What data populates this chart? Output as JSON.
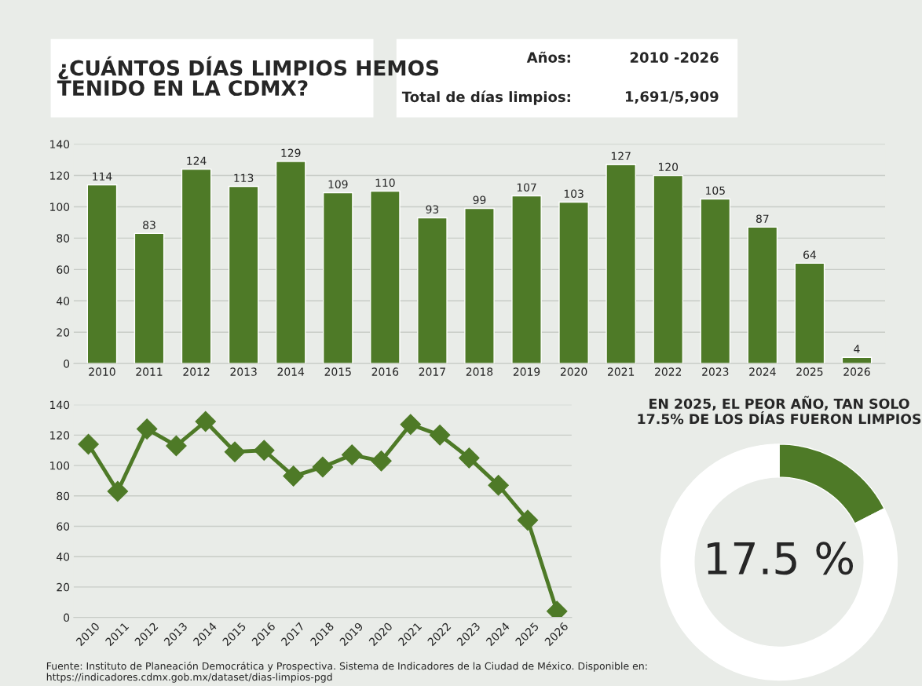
{
  "chart_data": [
    {
      "type": "other",
      "title": "¿CUÁNTOS DÍAS LIMPIOS HEMOS TENIDO EN LA CDMX?",
      "annotations": [
        "Años:",
        "2010 -2026",
        "Total de días limpios:",
        "1,691/5,909",
        "Fuente: Instituto de Planeación Democrática y Prospectiva. Sistema de Indicadores de la Ciudad de México. Disponible en: https://indicadores.cdmx.gob.mx/dataset/dias-limpios-pgd"
      ]
    },
    {
      "type": "bar",
      "categories": [
        "2010",
        "2011",
        "2012",
        "2013",
        "2014",
        "2015",
        "2016",
        "2017",
        "2018",
        "2019",
        "2020",
        "2021",
        "2022",
        "2023",
        "2024",
        "2025",
        "2026"
      ],
      "values": [
        114,
        83,
        124,
        113,
        129,
        109,
        110,
        93,
        99,
        107,
        103,
        127,
        120,
        105,
        87,
        64,
        4
      ],
      "color": "#4e7a27",
      "ylim": [
        0,
        140
      ],
      "yticks": [
        0,
        20,
        40,
        60,
        80,
        100,
        120,
        140
      ],
      "grid": "y",
      "data_labels": true
    },
    {
      "type": "line",
      "categories": [
        "2010",
        "2011",
        "2012",
        "2013",
        "2014",
        "2015",
        "2016",
        "2017",
        "2018",
        "2019",
        "2020",
        "2021",
        "2022",
        "2023",
        "2024",
        "2025",
        "2026"
      ],
      "values": [
        114,
        83,
        124,
        113,
        129,
        109,
        110,
        93,
        99,
        107,
        103,
        127,
        120,
        105,
        87,
        64,
        4
      ],
      "color": "#4e7a27",
      "ylim": [
        0,
        140
      ],
      "yticks": [
        0,
        20,
        40,
        60,
        80,
        100,
        120,
        140
      ],
      "grid": "y",
      "marker": "diamond"
    },
    {
      "type": "donut",
      "title": "EN 2025, EL PEOR AÑO, TAN SOLO 17.5% DE LOS DÍAS FUERON LIMPIOS",
      "categories": [
        null,
        null
      ],
      "values": [
        17.5,
        82.5
      ],
      "colors": [
        "#4e7a27",
        "#ffffff"
      ],
      "annotations": [
        "17.5 %"
      ]
    }
  ]
}
